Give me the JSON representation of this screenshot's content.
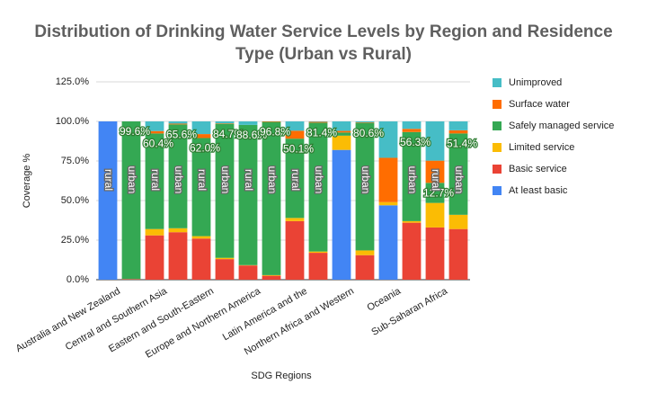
{
  "chart_data": {
    "type": "stacked_bar",
    "title": [
      "Distribution of Drinking Water Service Levels by Region and Residence",
      "Type (Urban vs Rural)"
    ],
    "x_label": "SDG Regions",
    "y_label": "Coverage %",
    "regions": [
      "Australia and New Zealand",
      "Central and Southern Asia",
      "Eastern and South-Eastern",
      "Europe and Northern America",
      "Latin America and the",
      "Northern Africa and Western",
      "Oceania",
      "Sub-Saharan Africa"
    ],
    "categories": [
      "rural",
      "urban",
      "rural",
      "urban",
      "rural",
      "urban",
      "rural",
      "urban",
      "rural",
      "urban",
      null,
      "urban",
      null,
      "urban",
      "rural",
      "urban"
    ],
    "series": [
      {
        "name": "At least basic",
        "color": "#4285f4",
        "values": [
          100,
          0,
          0,
          0,
          0,
          0,
          0,
          0,
          0,
          0,
          82,
          0,
          47,
          0,
          0,
          0
        ]
      },
      {
        "name": "Basic service",
        "color": "#ea4335",
        "values": [
          0,
          0.4,
          28,
          30,
          26,
          13,
          9,
          2.5,
          37,
          17,
          0,
          15.5,
          0,
          36,
          33,
          32
        ]
      },
      {
        "name": "Limited service",
        "color": "#fbbc04",
        "values": [
          0,
          0,
          4,
          2.5,
          1.5,
          0.8,
          0.2,
          0.4,
          2,
          0.8,
          9,
          3,
          2,
          1,
          15.5,
          9
        ]
      },
      {
        "name": "Safely managed service",
        "color": "#34a853",
        "values": [
          0,
          99.6,
          60.4,
          65.6,
          62.0,
          84.7,
          88.6,
          96.8,
          50.1,
          81.4,
          2,
          80.6,
          0,
          56.3,
          12.7,
          51.4
        ],
        "value_labels": [
          null,
          "99.6%",
          "60.4%",
          "65.6%",
          "62.0%",
          "84.7%",
          "88.6%",
          "96.8%",
          "50.1%",
          "81.4%",
          null,
          "80.6%",
          null,
          "56.3%",
          "12.7%",
          "51.4%"
        ]
      },
      {
        "name": "Surface water",
        "color": "#ff6d01",
        "values": [
          0,
          0,
          1.5,
          0.5,
          2.5,
          0.3,
          0,
          0.3,
          5,
          0.5,
          1,
          0.3,
          28,
          2,
          14,
          2
        ]
      },
      {
        "name": "Unimproved",
        "color": "#46bdc6",
        "values": [
          0,
          0,
          6.1,
          1.4,
          8,
          1.2,
          2.2,
          0,
          5.9,
          0.3,
          6,
          0.6,
          23,
          4.7,
          24.8,
          5.6
        ]
      }
    ],
    "ylim": [
      0,
      125
    ],
    "yticks": [
      {
        "value": 0,
        "label": "0.0%"
      },
      {
        "value": 25,
        "label": "25.0%"
      },
      {
        "value": 50,
        "label": "50.0%"
      },
      {
        "value": 75,
        "label": "75.0%"
      },
      {
        "value": 100,
        "label": "100.0%"
      },
      {
        "value": 125,
        "label": "125.0%"
      }
    ],
    "grid": true,
    "legend": "right"
  }
}
